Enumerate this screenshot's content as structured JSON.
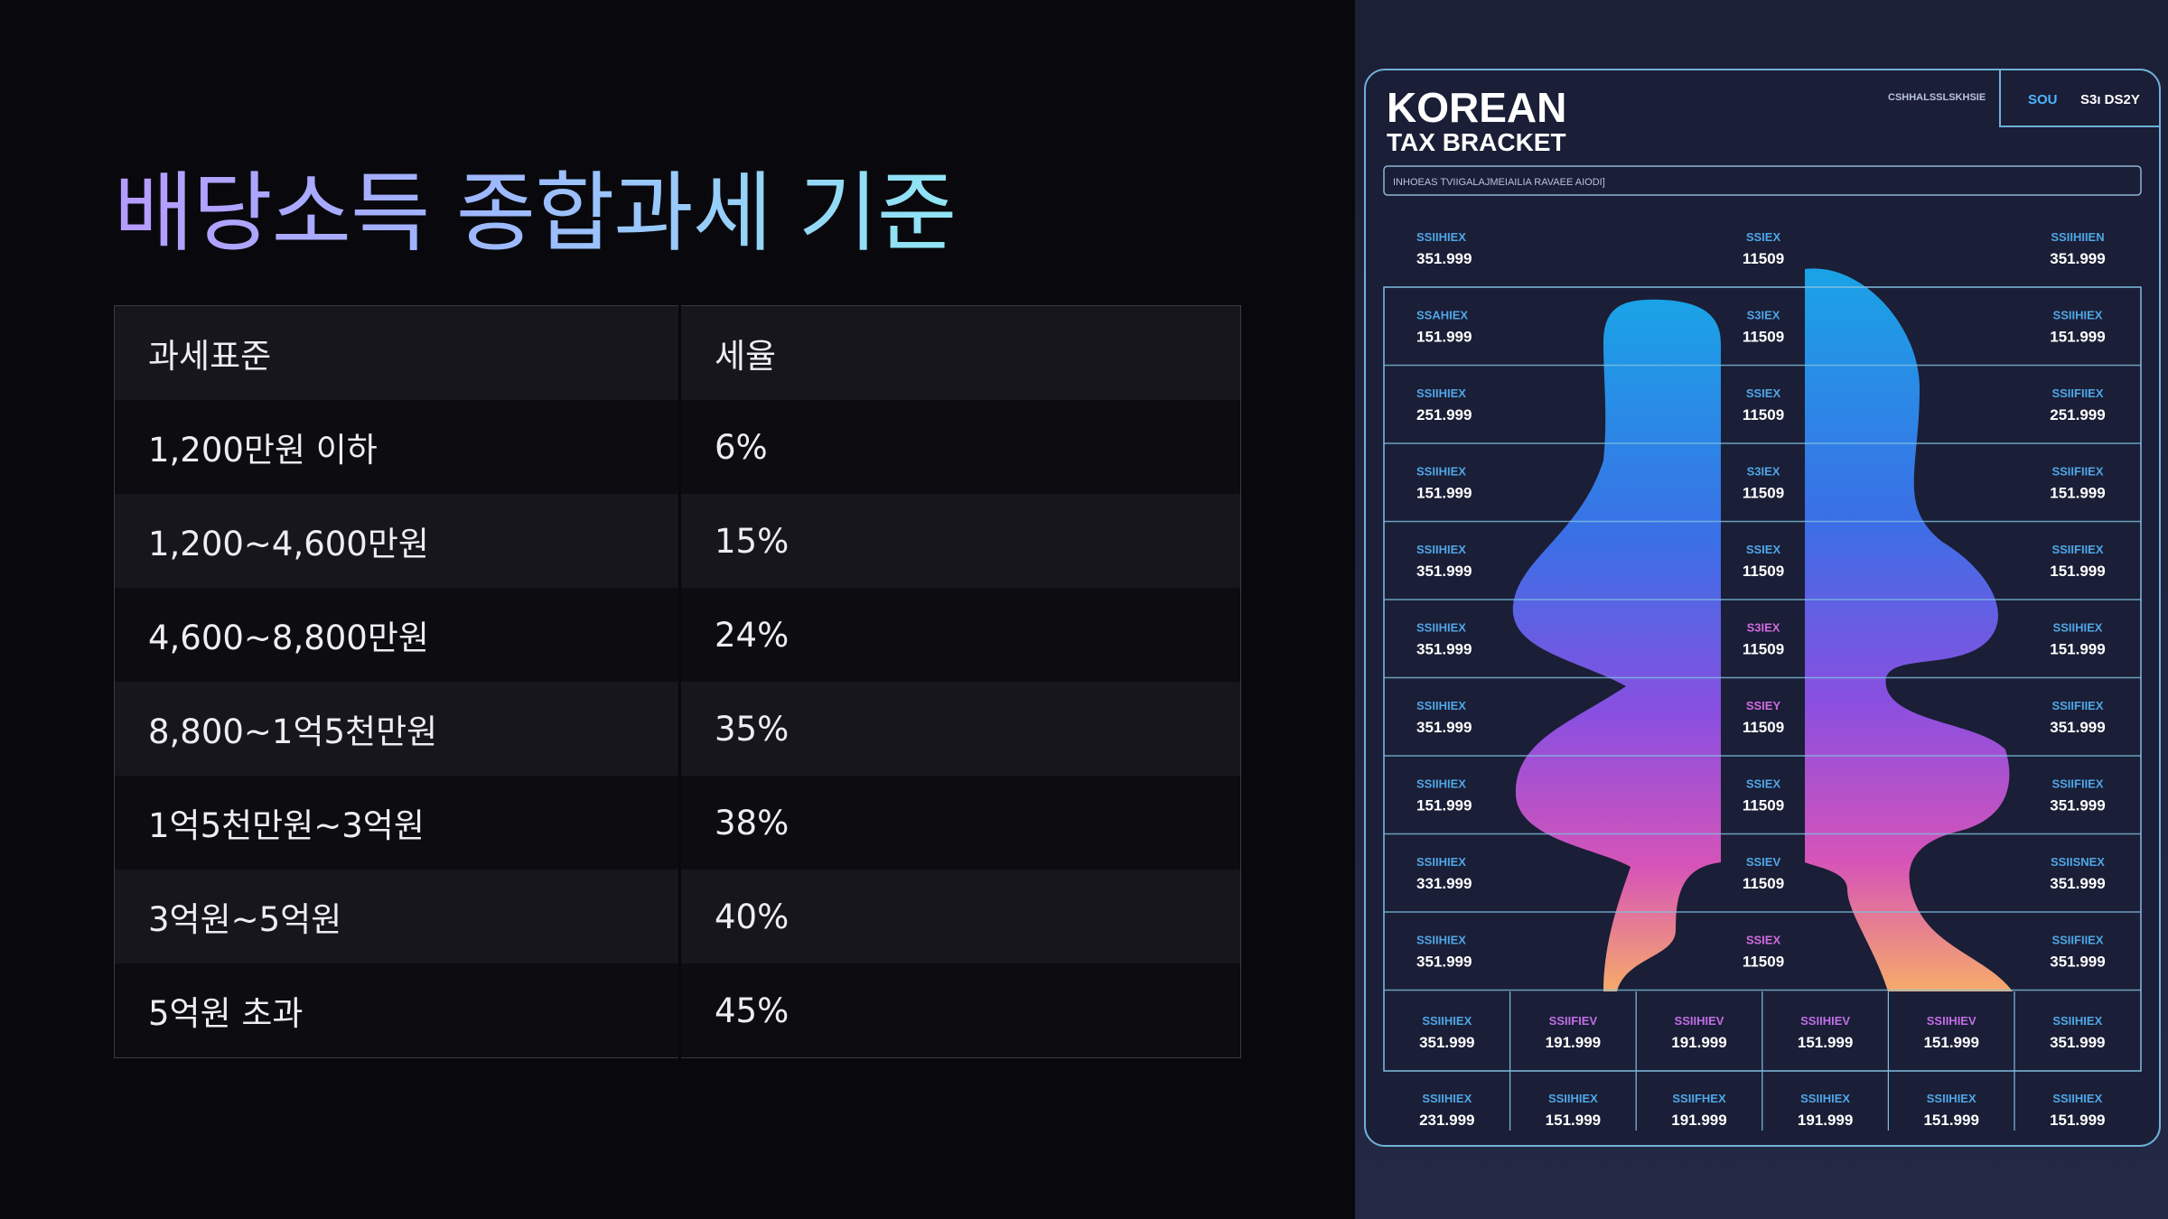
{
  "title": "배당소득 종합과세 기준",
  "table": {
    "headers": [
      "과세표준",
      "세율"
    ],
    "rows": [
      {
        "bracket": "1,200만원 이하",
        "rate": "6%"
      },
      {
        "bracket": "1,200~4,600만원",
        "rate": "15%"
      },
      {
        "bracket": "4,600~8,800만원",
        "rate": "24%"
      },
      {
        "bracket": "8,800~1억5천만원",
        "rate": "35%"
      },
      {
        "bracket": "1억5천만원~3억원",
        "rate": "38%"
      },
      {
        "bracket": "3억원~5억원",
        "rate": "40%"
      },
      {
        "bracket": "5억원 초과",
        "rate": "45%"
      }
    ]
  },
  "poster": {
    "title_line1": "KOREAN",
    "title_line2": "TAX BRACKET",
    "top_right_small": "CSHHALSSLSKHSIE",
    "top_right_a": "SOU",
    "top_right_b": "S3ı DS2Y",
    "search_text": "INHOEAS TVIIGALAJMEIAILIA RAVAEE AIODI]",
    "grid_rows": [
      {
        "left_label": "SSIIHIEX",
        "left_value": "351.999",
        "mid_label": "SSIEX",
        "mid_value": "11509",
        "right_label": "SSIIHIIEN",
        "right_value": "351.999"
      },
      {
        "left_label": "SSAHIEX",
        "left_value": "151.999",
        "mid_label": "S3IEX",
        "mid_value": "11509",
        "right_label": "SSIIHIEX",
        "right_value": "151.999"
      },
      {
        "left_label": "SSIIHIEX",
        "left_value": "251.999",
        "mid_label": "SSIEX",
        "mid_value": "11509",
        "right_label": "SSIIFIIEX",
        "right_value": "251.999"
      },
      {
        "left_label": "SSIIHIEX",
        "left_value": "151.999",
        "mid_label": "S3IEX",
        "mid_value": "11509",
        "right_label": "SSIIFIIEX",
        "right_value": "151.999"
      },
      {
        "left_label": "SSIIHIEX",
        "left_value": "351.999",
        "mid_label": "SSIEX",
        "mid_value": "11509",
        "right_label": "SSIIFIIEX",
        "right_value": "151.999"
      },
      {
        "left_label": "SSIIHIEX",
        "left_value": "351.999",
        "mid_label": "S3IEX",
        "mid_value": "11509",
        "right_label": "SSIIHIEX",
        "right_value": "151.999"
      },
      {
        "left_label": "SSIIHIEX",
        "left_value": "351.999",
        "mid_label": "SSIEY",
        "mid_value": "11509",
        "right_label": "SSIIFIIEX",
        "right_value": "351.999"
      },
      {
        "left_label": "SSIIHIEX",
        "left_value": "151.999",
        "mid_label": "SSIEX",
        "mid_value": "11509",
        "right_label": "SSIIFIIEX",
        "right_value": "351.999"
      },
      {
        "left_label": "SSIIHIEX",
        "left_value": "331.999",
        "mid_label": "SSIEV",
        "mid_value": "11509",
        "right_label": "SSIISNEX",
        "right_value": "351.999"
      },
      {
        "left_label": "SSIIHIEX",
        "left_value": "351.999",
        "mid_label": "SSIEX",
        "mid_value": "11509",
        "right_label": "SSIIFIIEX",
        "right_value": "351.999"
      }
    ],
    "bottom_rows": [
      {
        "cells": [
          {
            "label": "SSIIHIEX",
            "value": "351.999"
          },
          {
            "label": "SSIIFIEV",
            "value": "191.999"
          },
          {
            "label": "SSIIHIEV",
            "value": "191.999"
          },
          {
            "label": "SSIIHIEV",
            "value": "151.999"
          },
          {
            "label": "SSIIHIEV",
            "value": "151.999"
          },
          {
            "label": "SSIIHIEX",
            "value": "351.999"
          }
        ]
      },
      {
        "cells": [
          {
            "label": "SSIIHIEX",
            "value": "231.999"
          },
          {
            "label": "SSIIHIEX",
            "value": "151.999"
          },
          {
            "label": "SSIIFHEX",
            "value": "191.999"
          },
          {
            "label": "SSIIHIEX",
            "value": "191.999"
          },
          {
            "label": "SSIIHIEX",
            "value": "151.999"
          },
          {
            "label": "SSIIHIEX",
            "value": "151.999"
          }
        ]
      }
    ]
  },
  "colors": {
    "title_gradient": [
      "#b69bff",
      "#8fe6f4"
    ],
    "poster_shape_gradient": [
      "#1aa3e6",
      "#3b73e6",
      "#8a4fe0",
      "#d654b8",
      "#f4a868"
    ]
  }
}
